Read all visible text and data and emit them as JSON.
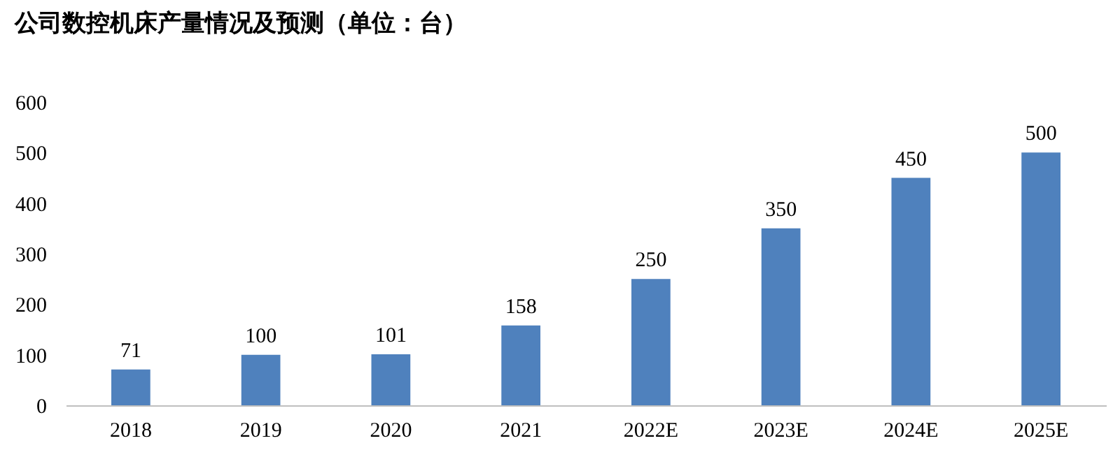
{
  "chart_data": {
    "type": "bar",
    "title": "公司数控机床产量情况及预测（单位：台）",
    "categories": [
      "2018",
      "2019",
      "2020",
      "2021",
      "2022E",
      "2023E",
      "2024E",
      "2025E"
    ],
    "values": [
      71,
      100,
      101,
      158,
      250,
      350,
      450,
      500
    ],
    "color": "#4f81bd",
    "ylim": [
      0,
      600
    ],
    "yticks": [
      0,
      100,
      200,
      300,
      400,
      500,
      600
    ],
    "grid": false,
    "data_labels": true
  }
}
